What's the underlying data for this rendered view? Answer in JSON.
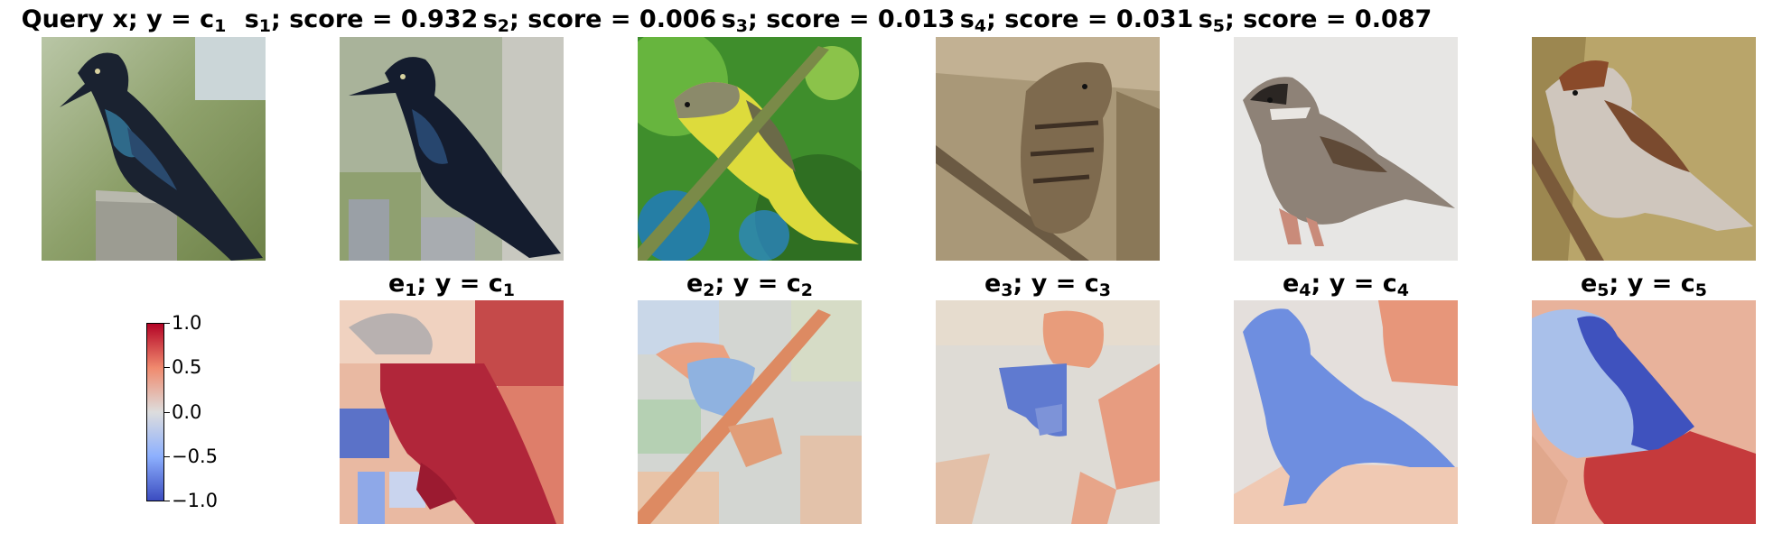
{
  "query": {
    "label": "Query",
    "var": "x",
    "class_var": "y",
    "class_sym": "c",
    "class_sub": "1"
  },
  "similar": [
    {
      "sym": "s",
      "sub": "1",
      "score_label": "score",
      "score": "0.932"
    },
    {
      "sym": "s",
      "sub": "2",
      "score_label": "score",
      "score": "0.006"
    },
    {
      "sym": "s",
      "sub": "3",
      "score_label": "score",
      "score": "0.013"
    },
    {
      "sym": "s",
      "sub": "4",
      "score_label": "score",
      "score": "0.031"
    },
    {
      "sym": "s",
      "sub": "5",
      "score_label": "score",
      "score": "0.087"
    }
  ],
  "explanations": [
    {
      "sym": "e",
      "sub": "1",
      "class_var": "y",
      "class_sym": "c",
      "class_sub": "1"
    },
    {
      "sym": "e",
      "sub": "2",
      "class_var": "y",
      "class_sym": "c",
      "class_sub": "2"
    },
    {
      "sym": "e",
      "sub": "3",
      "class_var": "y",
      "class_sym": "c",
      "class_sub": "3"
    },
    {
      "sym": "e",
      "sub": "4",
      "class_var": "y",
      "class_sym": "c",
      "class_sub": "4"
    },
    {
      "sym": "e",
      "sub": "5",
      "class_var": "y",
      "class_sym": "c",
      "class_sub": "5"
    }
  ],
  "colorbar": {
    "ticks": [
      "1.0",
      "0.5",
      "0.0",
      "−0.5",
      "−1.0"
    ],
    "colors": {
      "high": "#b40426",
      "mid": "#dddddd",
      "low": "#3b4cc0"
    }
  }
}
